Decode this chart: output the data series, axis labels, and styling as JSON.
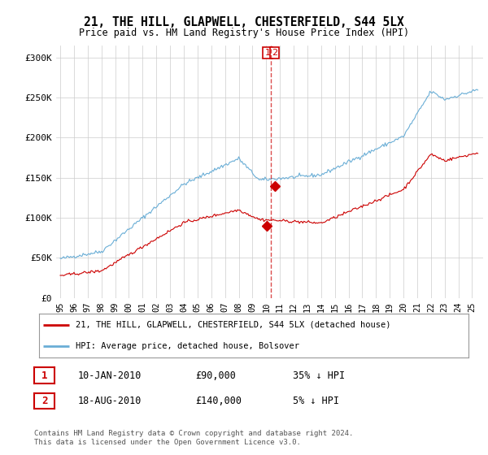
{
  "title": "21, THE HILL, GLAPWELL, CHESTERFIELD, S44 5LX",
  "subtitle": "Price paid vs. HM Land Registry's House Price Index (HPI)",
  "yticks": [
    0,
    50000,
    100000,
    150000,
    200000,
    250000,
    300000
  ],
  "ytick_labels": [
    "£0",
    "£50K",
    "£100K",
    "£150K",
    "£200K",
    "£250K",
    "£300K"
  ],
  "ylim": [
    0,
    315000
  ],
  "hpi_color": "#6aaed6",
  "price_color": "#cc0000",
  "vline_color": "#cc0000",
  "transactions": [
    {
      "date_num": 2010.04,
      "price": 90000,
      "label": "1",
      "pct": "35% ↓ HPI",
      "date_str": "10-JAN-2010"
    },
    {
      "date_num": 2010.63,
      "price": 140000,
      "label": "2",
      "pct": "5% ↓ HPI",
      "date_str": "18-AUG-2010"
    }
  ],
  "legend_entries": [
    {
      "label": "21, THE HILL, GLAPWELL, CHESTERFIELD, S44 5LX (detached house)",
      "color": "#cc0000"
    },
    {
      "label": "HPI: Average price, detached house, Bolsover",
      "color": "#6aaed6"
    }
  ],
  "footer": "Contains HM Land Registry data © Crown copyright and database right 2024.\nThis data is licensed under the Open Government Licence v3.0.",
  "background_color": "#ffffff",
  "grid_color": "#cccccc",
  "xlim_left": 1994.7,
  "xlim_right": 2025.8,
  "xtick_start": 1995,
  "xtick_end": 2026
}
